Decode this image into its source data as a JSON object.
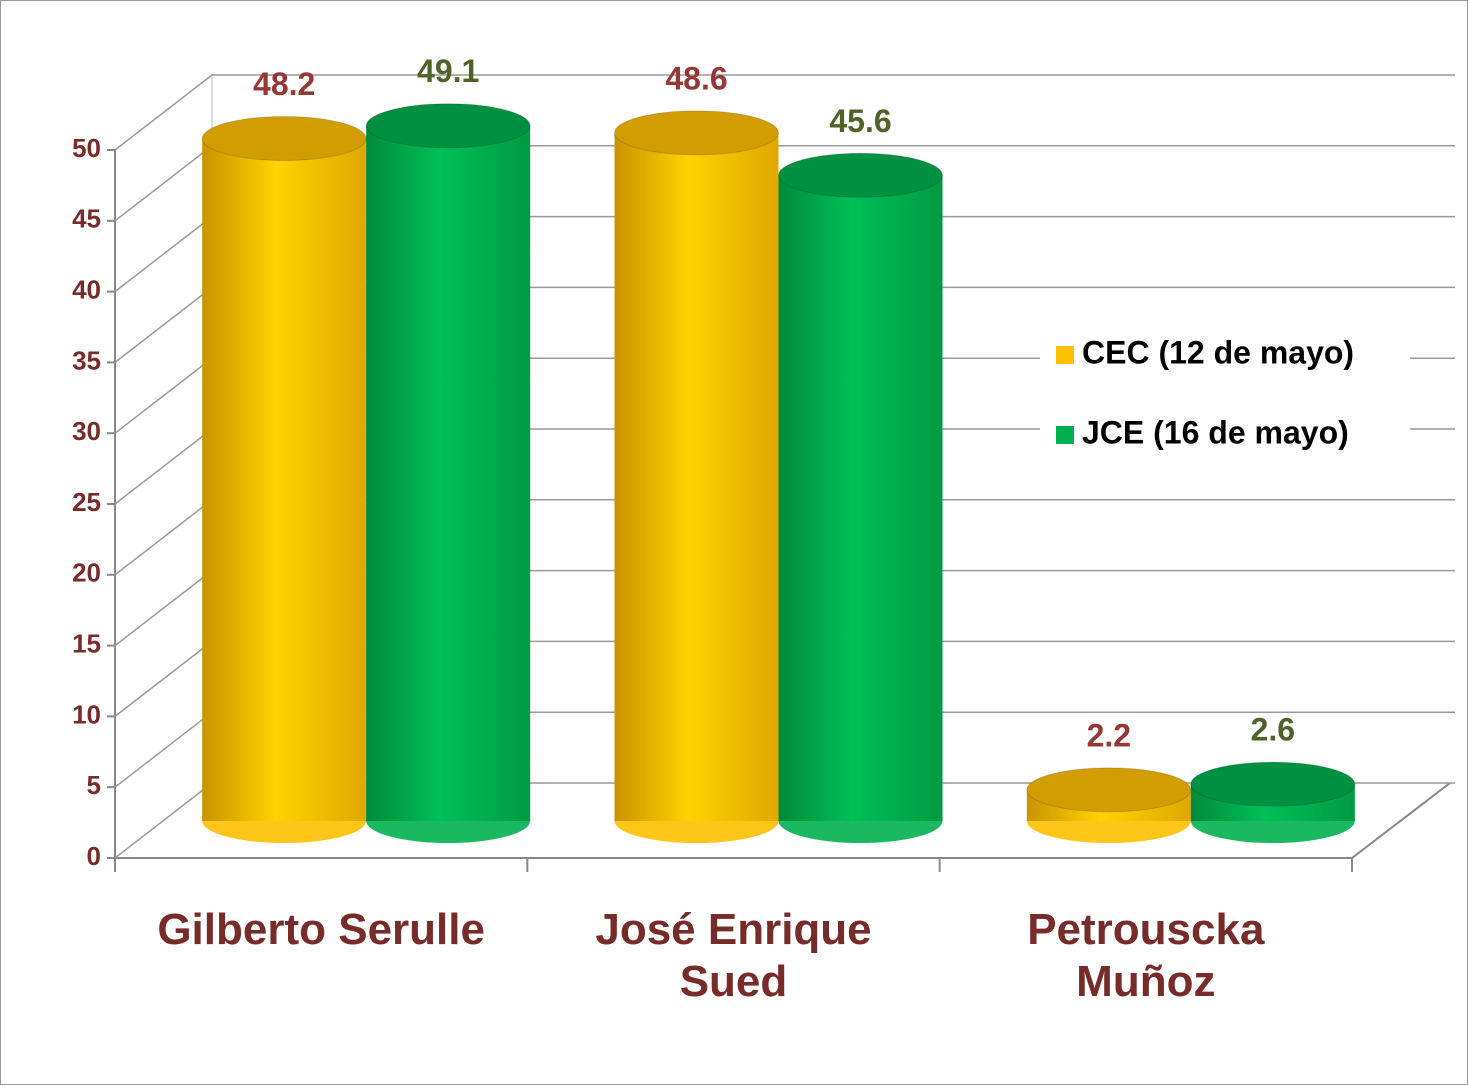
{
  "chart_data": {
    "type": "bar3d",
    "categories": [
      "Gilberto Serulle",
      "José Enrique Sued",
      "Petrouscka Muñoz"
    ],
    "series": [
      {
        "name": "CEC (12 de mayo)",
        "color": "#ffc000",
        "label_color": "#953735",
        "values": [
          48.2,
          48.6,
          2.2
        ]
      },
      {
        "name": "JCE (16 de mayo)",
        "color": "#00b050",
        "label_color": "#4f6228",
        "values": [
          49.1,
          45.6,
          2.6
        ]
      }
    ],
    "ylim": [
      0,
      50
    ],
    "yticks": [
      0,
      5,
      10,
      15,
      20,
      25,
      30,
      35,
      40,
      45,
      50
    ],
    "grid": true,
    "legend": "right"
  }
}
